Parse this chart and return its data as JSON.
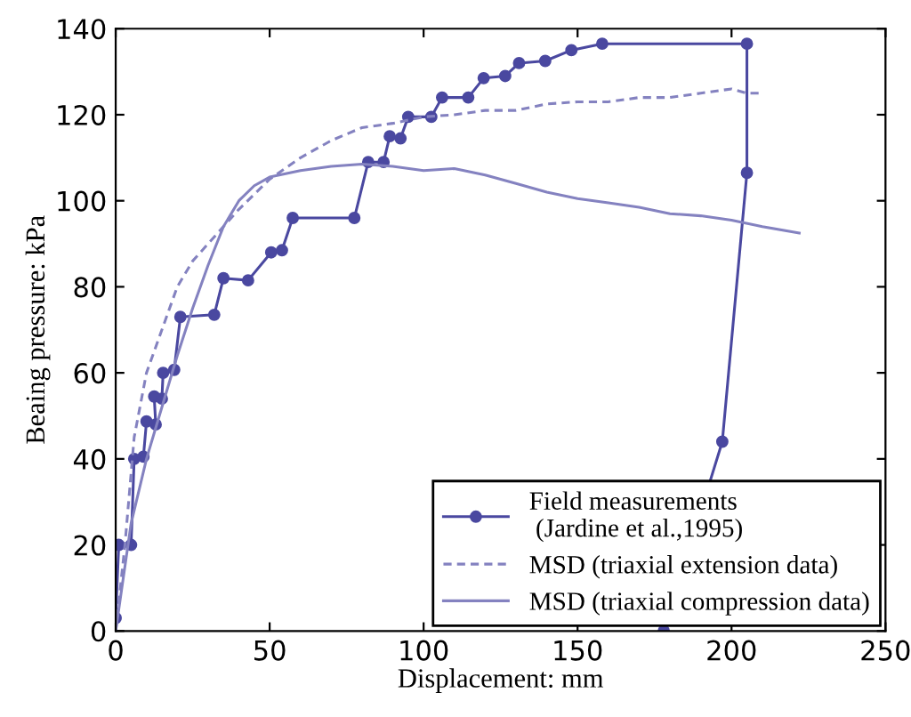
{
  "chart_data": {
    "type": "line",
    "xlabel": "Displacement: mm",
    "ylabel": "Beaing pressure: kPa",
    "xlim": [
      0,
      250
    ],
    "xticks": [
      0,
      50,
      100,
      150,
      200,
      250
    ],
    "ylim": [
      0,
      140
    ],
    "yticks": [
      0,
      20,
      40,
      60,
      80,
      100,
      120,
      140
    ],
    "grid": false,
    "legend": "bottom right",
    "series": [
      {
        "name": "Field measurements\n (Jardine et al.,1995)",
        "color": "#4a48a0",
        "marker": "circle",
        "line_style": "solid",
        "x": [
          0,
          1,
          5,
          6,
          9,
          10,
          13,
          12.5,
          15,
          15.4,
          19,
          21,
          32,
          35,
          43,
          50.5,
          54,
          57.5,
          77.5,
          82,
          87,
          89,
          92.5,
          95,
          102.5,
          106,
          114.5,
          119.5,
          126.5,
          131,
          139.5,
          148,
          158,
          205,
          205,
          197,
          178
        ],
        "values": [
          3,
          20,
          20,
          40,
          40.5,
          48.7,
          48,
          54.5,
          54,
          60,
          60.7,
          73,
          73.5,
          82,
          81.5,
          88,
          88.5,
          96,
          96,
          109,
          109,
          115,
          114.5,
          119.5,
          119.5,
          124,
          124,
          128.5,
          129,
          132,
          132.5,
          135,
          136.5,
          136.5,
          106.5,
          44,
          0
        ]
      },
      {
        "name": "MSD (triaxial extension data)",
        "color": "#8482c0",
        "marker": "none",
        "line_style": "dashed",
        "x": [
          0,
          3,
          6,
          10,
          15,
          20,
          25,
          30,
          40,
          50,
          60,
          70,
          80,
          90,
          100,
          110,
          120,
          130,
          140,
          150,
          160,
          170,
          180,
          190,
          200,
          205,
          210
        ],
        "values": [
          0,
          20,
          45,
          60,
          70,
          80,
          86,
          90,
          98,
          105,
          110,
          114,
          117,
          118,
          119.5,
          120,
          121,
          121,
          122.5,
          123,
          123,
          124,
          124,
          125,
          126,
          125,
          125
        ]
      },
      {
        "name": "MSD (triaxial compression data)",
        "color": "#8482c0",
        "marker": "none",
        "line_style": "solid",
        "x": [
          0,
          5,
          10,
          15,
          20,
          25,
          30,
          35,
          40,
          45,
          50,
          60,
          70,
          80,
          90,
          100,
          110,
          120,
          130,
          140,
          150,
          160,
          170,
          180,
          190,
          200,
          210,
          222
        ],
        "values": [
          0,
          25,
          40,
          52,
          64,
          75,
          85,
          94,
          100,
          103.5,
          105.5,
          107,
          108,
          108.5,
          108,
          107,
          107.5,
          106,
          104,
          102,
          100.5,
          99.5,
          98.5,
          97,
          96.5,
          95.5,
          94,
          92.5
        ]
      }
    ]
  }
}
